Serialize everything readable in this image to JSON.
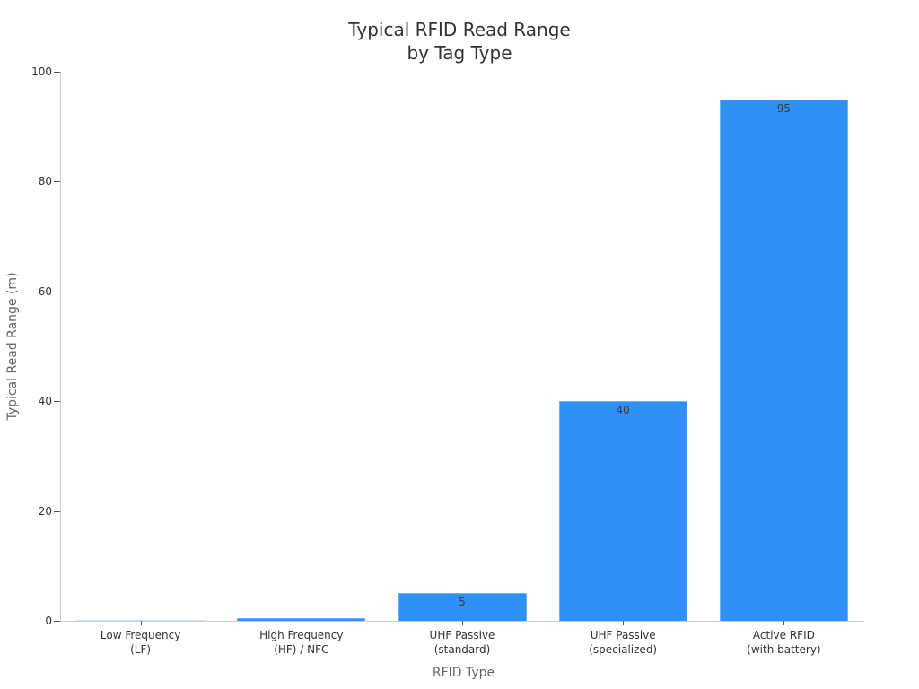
{
  "chart_data": {
    "type": "bar",
    "title": "Typical RFID Read Range\nby Tag Type",
    "title_lines": [
      "Typical RFID Read Range",
      "by Tag Type"
    ],
    "xlabel": "RFID Type",
    "ylabel": "Typical Read Range (m)",
    "ylim": [
      0,
      100
    ],
    "yticks": [
      0,
      20,
      40,
      60,
      80,
      100
    ],
    "grid": false,
    "legend": null,
    "categories": [
      "Low Frequency (LF)",
      "High Frequency (HF) / NFC",
      "UHF Passive (standard)",
      "UHF Passive (specialized)",
      "Active RFID (with battery)"
    ],
    "category_lines": [
      [
        "Low Frequency",
        "(LF)"
      ],
      [
        "High Frequency",
        "(HF) / NFC"
      ],
      [
        "UHF Passive",
        "(standard)"
      ],
      [
        "UHF Passive",
        "(specialized)"
      ],
      [
        "Active RFID",
        "(with battery)"
      ]
    ],
    "values": [
      0.1,
      0.5,
      5,
      40,
      95
    ],
    "data_labels": [
      "",
      "",
      "5",
      "40",
      "95"
    ],
    "bar_color": "#2f91f5"
  }
}
